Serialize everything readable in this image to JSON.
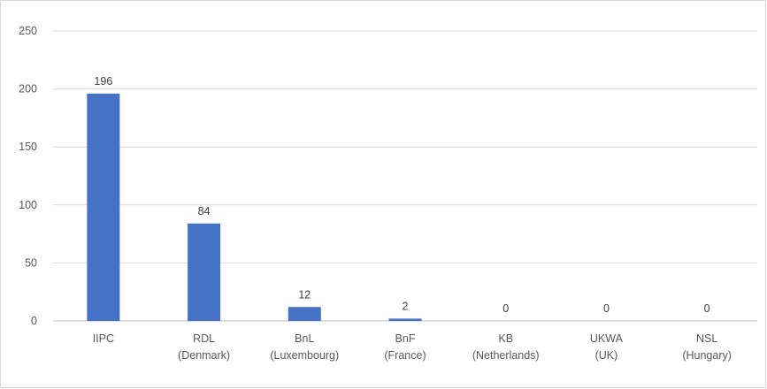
{
  "chart_data": {
    "type": "bar",
    "categories": [
      [
        "IIPC"
      ],
      [
        "RDL",
        "(Denmark)"
      ],
      [
        "BnL",
        "(Luxembourg)"
      ],
      [
        "BnF",
        "(France)"
      ],
      [
        "KB",
        "(Netherlands)"
      ],
      [
        "UKWA",
        "(UK)"
      ],
      [
        "NSL",
        "(Hungary)"
      ]
    ],
    "values": [
      196,
      84,
      12,
      2,
      0,
      0,
      0
    ],
    "data_labels": [
      "196",
      "84",
      "12",
      "2",
      "0",
      "0",
      "0"
    ],
    "y_ticks": [
      "0",
      "50",
      "100",
      "150",
      "200",
      "250"
    ],
    "ylim": [
      0,
      250
    ],
    "title": "",
    "xlabel": "",
    "ylabel": "",
    "grid": true,
    "legend": "none",
    "bar_color": "#4472c4",
    "grid_color": "#d9d9d9"
  }
}
